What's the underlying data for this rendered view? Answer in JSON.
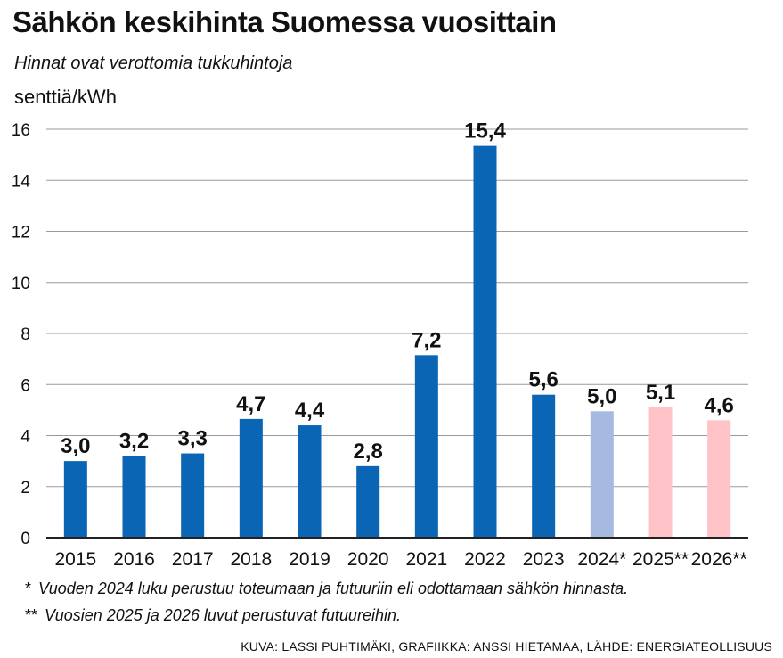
{
  "chart_data": {
    "type": "bar",
    "title": "Sähkön keskihinta Suomessa vuosittain",
    "subtitle": "Hinnat ovat verottomia tukkuhintoja",
    "ylabel": "senttiä/kWh",
    "xlabel": "",
    "ylim": [
      0,
      16
    ],
    "yticks": [
      "0",
      "2",
      "4",
      "6",
      "8",
      "10",
      "12",
      "14",
      "16"
    ],
    "ytick_values": [
      0,
      2,
      4,
      6,
      8,
      10,
      12,
      14,
      16
    ],
    "categories": [
      "2015",
      "2016",
      "2017",
      "2018",
      "2019",
      "2020",
      "2021",
      "2022",
      "2023",
      "2024*",
      "2025**",
      "2026**"
    ],
    "values": [
      3.0,
      3.2,
      3.3,
      4.65,
      4.4,
      2.8,
      7.15,
      15.35,
      5.6,
      4.95,
      5.1,
      4.6
    ],
    "value_labels": [
      "3,0",
      "3,2",
      "3,3",
      "4,7",
      "4,4",
      "2,8",
      "7,2",
      "15,4",
      "5,6",
      "5,0",
      "5,1",
      "4,6"
    ],
    "bar_colors": [
      "#0a66b5",
      "#0a66b5",
      "#0a66b5",
      "#0a66b5",
      "#0a66b5",
      "#0a66b5",
      "#0a66b5",
      "#0a66b5",
      "#0a66b5",
      "#a6b9e0",
      "#ffc2c7",
      "#ffc2c7"
    ],
    "grid": true
  },
  "footnotes": [
    {
      "mark": "*",
      "text": "Vuoden 2024 luku perustuu toteumaan ja futuuriin eli odottamaan sähkön hinnasta."
    },
    {
      "mark": "**",
      "text": "Vuosien 2025 ja 2026 luvut perustuvat futuureihin."
    }
  ],
  "credit": "KUVA: LASSI PUHTIMÄKI, GRAFIIKKA: ANSSI HIETAMAA, LÄHDE: ENERGIATEOLLISUUS",
  "colors": {
    "actual": "#0a66b5",
    "estimate_2024": "#a6b9e0",
    "forecast": "#ffc2c7",
    "grid": "#9a9a9a",
    "axis": "#222222"
  }
}
